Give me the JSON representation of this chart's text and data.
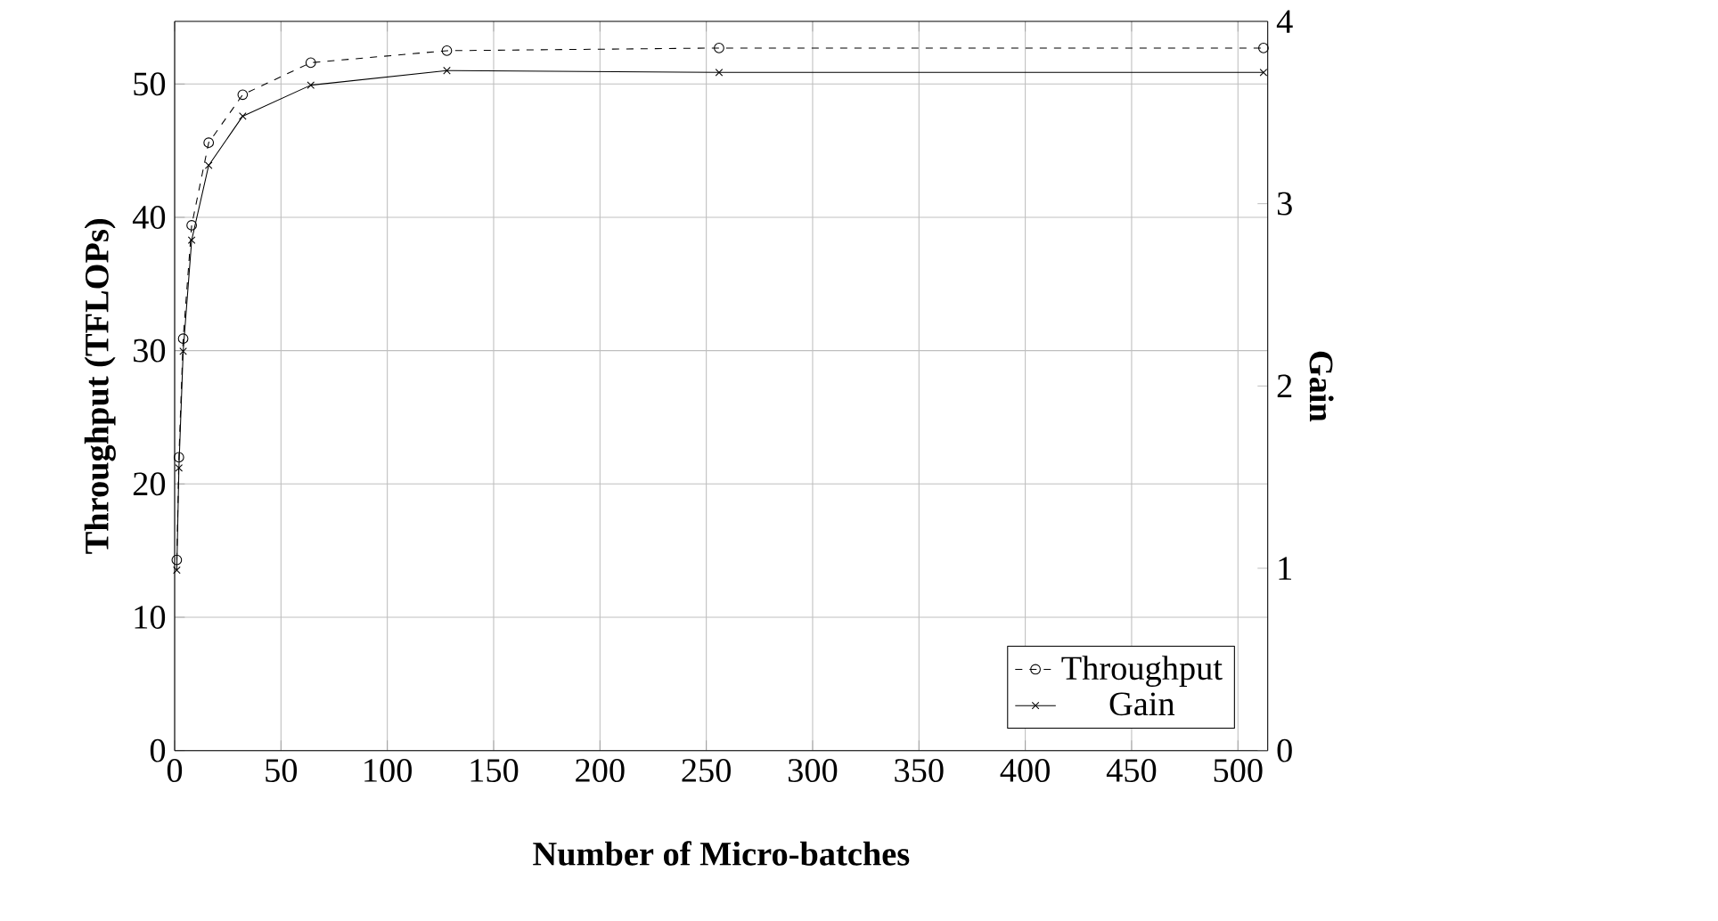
{
  "chart_data": {
    "type": "line",
    "xlabel": "Number of Micro-batches",
    "ylabel": "Throughput (TFLOPs)",
    "y2label": "Gain",
    "x": [
      1,
      2,
      4,
      8,
      16,
      32,
      64,
      128,
      256,
      512
    ],
    "series": [
      {
        "name": "Throughput",
        "color": "#000000",
        "marker": "circle",
        "line_style": "dashed",
        "values": [
          14.3,
          22.0,
          30.9,
          39.4,
          45.6,
          49.2,
          51.6,
          52.5,
          52.7,
          52.7
        ]
      },
      {
        "name": "Gain",
        "color": "#000000",
        "marker": "cross",
        "line_style": "solid",
        "axis": "y2",
        "values": [
          0.99,
          1.55,
          2.19,
          2.8,
          3.21,
          3.48,
          3.65,
          3.73,
          3.72,
          3.72
        ]
      }
    ],
    "xlim": [
      0,
      514
    ],
    "xticks": [
      0,
      50,
      100,
      150,
      200,
      250,
      300,
      350,
      400,
      450,
      500
    ],
    "ylim": [
      0,
      54.7
    ],
    "yticks": [
      0,
      10,
      20,
      30,
      40,
      50
    ],
    "y2lim": [
      0,
      4
    ],
    "y2ticks": [
      0,
      1,
      2,
      3,
      4
    ],
    "grid": true,
    "legend": "bottom right"
  }
}
